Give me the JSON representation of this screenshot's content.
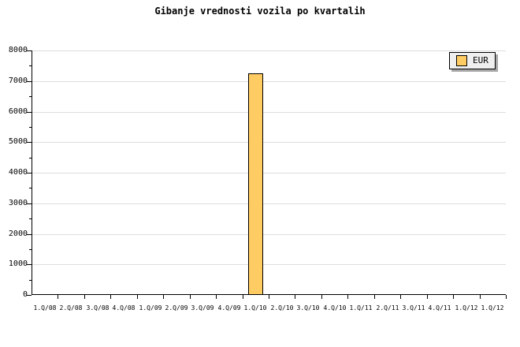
{
  "page": {
    "title": "Gibanje vrednosti vozila po kvartalih"
  },
  "legend": {
    "items": [
      {
        "label": "EUR",
        "color": "#FFCB63"
      }
    ]
  },
  "colors": {
    "background": "#FFFFFF",
    "text": "#000000",
    "axis": "#000000",
    "gridline": "#DDDDDD",
    "bar_fill": "#FFCB63",
    "bar_border": "#000000",
    "legend_bg": "#EFEFEF",
    "legend_border": "#000000",
    "legend_shadow": "#A8A8A8"
  },
  "chart_data": {
    "type": "bar",
    "title": "Gibanje vrednosti vozila po kvartalih",
    "categories": [
      "1.Q/08",
      "2.Q/08",
      "3.Q/08",
      "4.Q/08",
      "1.Q/09",
      "2.Q/09",
      "3.Q/09",
      "4.Q/09",
      "1.Q/10",
      "2.Q/10",
      "3.Q/10",
      "4.Q/10",
      "1.Q/11",
      "2.Q/11",
      "3.Q/11",
      "4.Q/11",
      "1.Q/12",
      "1.Q/12"
    ],
    "series": [
      {
        "name": "EUR",
        "values": [
          null,
          null,
          null,
          null,
          null,
          null,
          null,
          null,
          7250,
          null,
          null,
          null,
          null,
          null,
          null,
          null,
          null,
          null
        ]
      }
    ],
    "xlabel": "",
    "ylabel": "",
    "ylim": [
      0,
      8000
    ],
    "ytick_step": 1000,
    "y_minor_tick_step": 500,
    "grid": true,
    "legend_position": "top-right"
  }
}
